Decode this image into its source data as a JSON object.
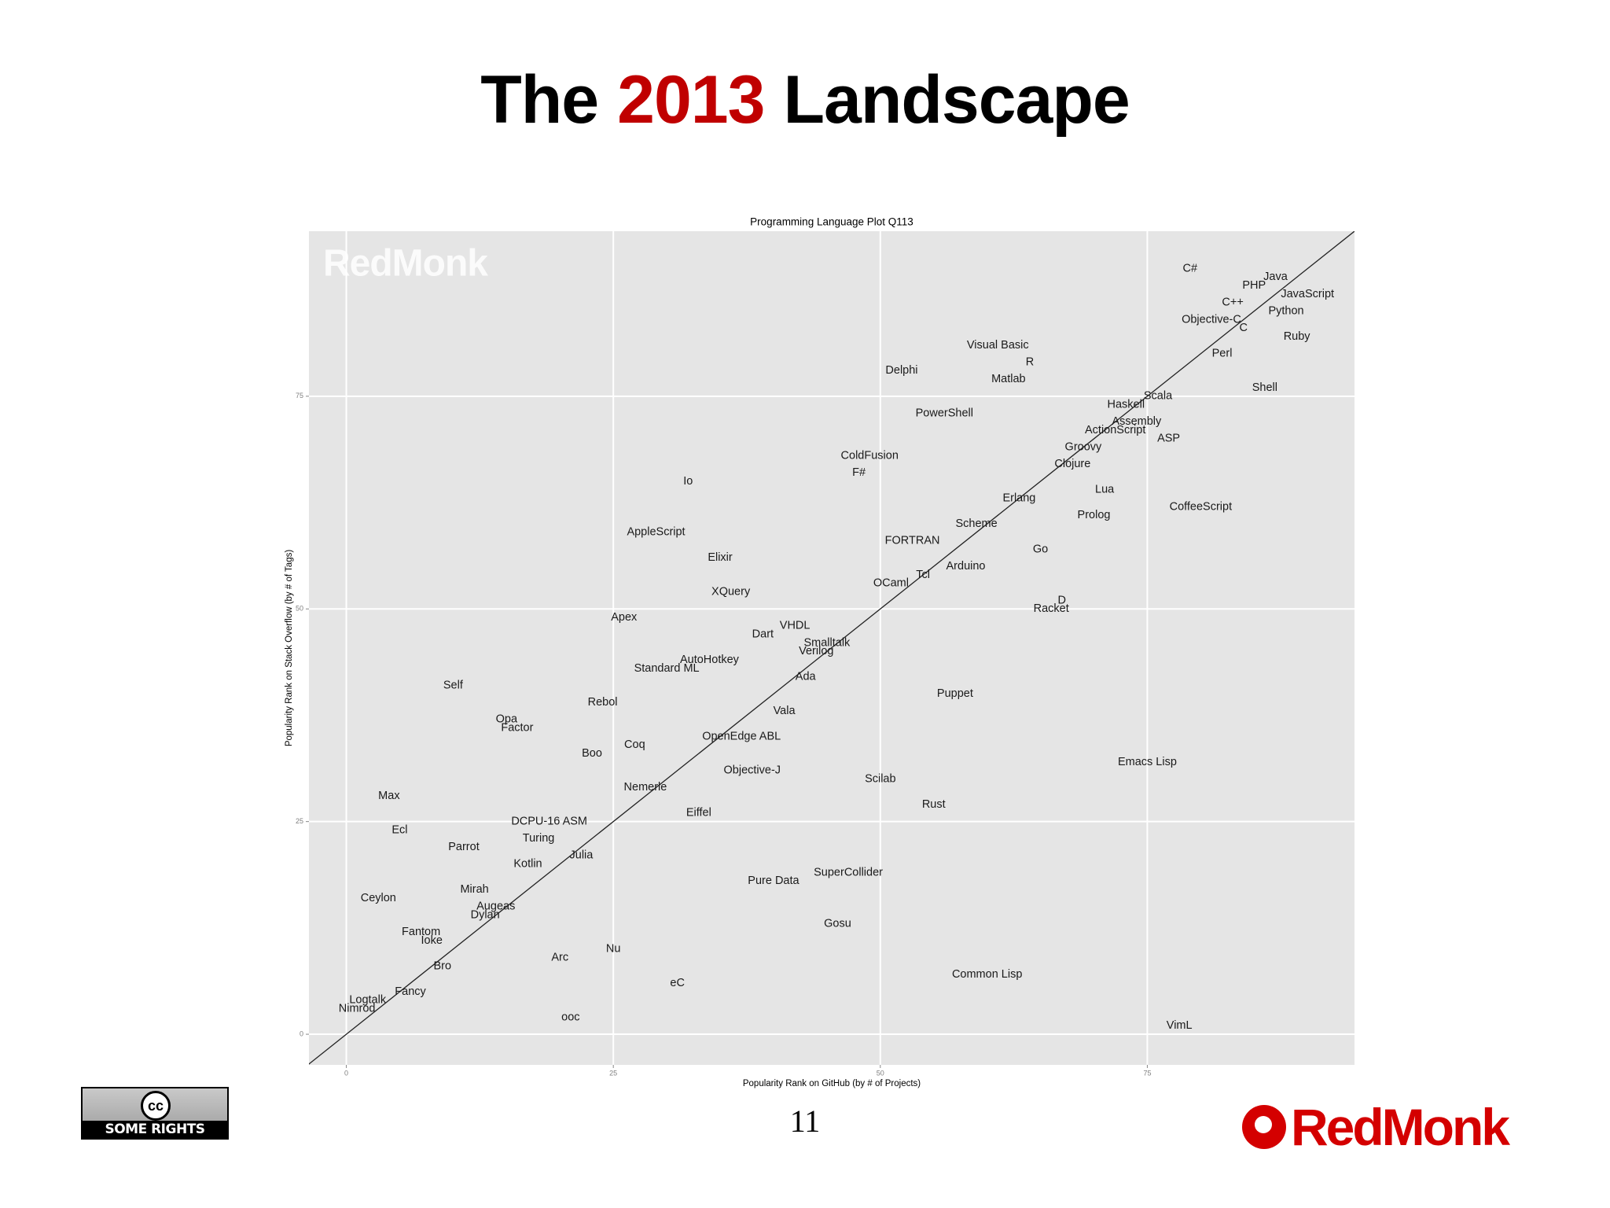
{
  "slide": {
    "title": {
      "before": "The",
      "highlight": "2013",
      "after": "Landscape"
    },
    "page_number": 11,
    "license": {
      "icon": "cc",
      "text": "SOME RIGHTS RESERVED"
    },
    "logo": "RedMonk"
  },
  "chart_data": {
    "type": "scatter",
    "title": "Programming Language Plot Q113",
    "watermark": "RedMonk",
    "xlabel": "Popularity Rank on GitHub (by # of Projects)",
    "ylabel": "Popularity Rank on Stack Overflow (by # of Tags)",
    "labels": [
      "C#",
      "Java",
      "PHP",
      "JavaScript",
      "C++",
      "Python",
      "Objective-C",
      "C",
      "Ruby",
      "Visual Basic",
      "R",
      "Perl",
      "Delphi",
      "Matlab",
      "Shell",
      "Scala",
      "Haskell",
      "PowerShell",
      "Assembly",
      "ActionScript",
      "ASP",
      "Groovy",
      "ColdFusion",
      "Clojure",
      "F#",
      "Io",
      "Lua",
      "Erlang",
      "CoffeeScript",
      "Prolog",
      "Scheme",
      "AppleScript",
      "FORTRAN",
      "Go",
      "Elixir",
      "Arduino",
      "Tcl",
      "OCaml",
      "XQuery",
      "D",
      "Racket",
      "Apex",
      "VHDL",
      "Dart",
      "Smalltalk",
      "Verilog",
      "AutoHotkey",
      "Standard ML",
      "Ada",
      "Self",
      "Puppet",
      "Rebol",
      "Vala",
      "Opa",
      "Factor",
      "OpenEdge ABL",
      "Coq",
      "Boo",
      "Emacs Lisp",
      "Objective-J",
      "Scilab",
      "Nemerle",
      "Max",
      "Rust",
      "Eiffel",
      "DCPU-16 ASM",
      "Ecl",
      "Turing",
      "Parrot",
      "Julia",
      "Kotlin",
      "SuperCollider",
      "Pure Data",
      "Mirah",
      "Ceylon",
      "Augeas",
      "Dylan",
      "Gosu",
      "Fantom",
      "Ioke",
      "Nu",
      "Arc",
      "Bro",
      "Common Lisp",
      "eC",
      "Fancy",
      "Logtalk",
      "Nimrod",
      "ooc",
      "VimL"
    ],
    "x": [
      79,
      87,
      85,
      90,
      83,
      88,
      81,
      84,
      89,
      61,
      64,
      82,
      52,
      62,
      86,
      76,
      73,
      56,
      74,
      72,
      77,
      69,
      49,
      68,
      48,
      32,
      71,
      63,
      80,
      70,
      59,
      29,
      53,
      65,
      35,
      58,
      54,
      51,
      36,
      67,
      66,
      26,
      42,
      39,
      45,
      44,
      34,
      30,
      43,
      10,
      57,
      24,
      41,
      15,
      16,
      37,
      27,
      23,
      75,
      38,
      50,
      28,
      4,
      55,
      33,
      19,
      5,
      18,
      11,
      22,
      17,
      47,
      40,
      12,
      3,
      14,
      13,
      46,
      7,
      8,
      25,
      20,
      9,
      60,
      31,
      6,
      2,
      1,
      21,
      78
    ],
    "y": [
      90,
      89,
      88,
      87,
      86,
      85,
      84,
      83,
      82,
      81,
      79,
      80,
      78,
      77,
      76,
      75,
      74,
      73,
      72,
      71,
      70,
      69,
      68,
      67,
      66,
      65,
      64,
      63,
      62,
      61,
      60,
      59,
      58,
      57,
      56,
      55,
      54,
      53,
      52,
      51,
      50,
      49,
      48,
      47,
      46,
      45,
      44,
      43,
      42,
      41,
      40,
      39,
      38,
      37,
      36,
      35,
      34,
      33,
      32,
      31,
      30,
      29,
      28,
      27,
      26,
      25,
      24,
      23,
      22,
      21,
      20,
      19,
      18,
      17,
      16,
      15,
      14,
      13,
      12,
      11,
      10,
      9,
      8,
      7,
      6,
      5,
      4,
      3,
      2,
      1
    ],
    "xlim": [
      -3.5,
      94.4
    ],
    "ylim": [
      -3.6,
      94.4
    ],
    "xticks": [
      0,
      25,
      50,
      75
    ],
    "yticks": [
      0,
      25,
      50,
      75
    ],
    "grid": true,
    "panel_color": "#e5e5e5",
    "grid_color": "#ffffff",
    "label_color": "#1a1a1a",
    "line_color": "#222222"
  }
}
